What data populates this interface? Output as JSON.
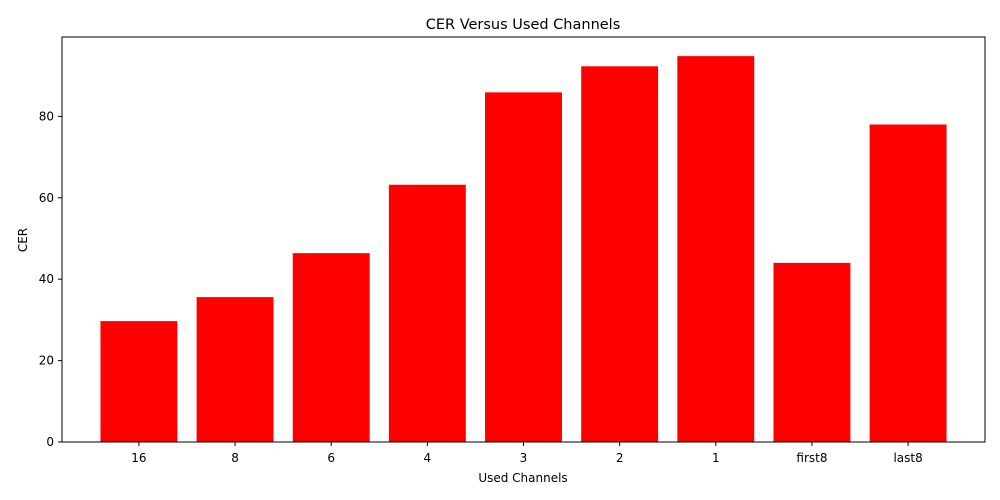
{
  "chart_data": {
    "type": "bar",
    "title": "CER Versus Used Channels",
    "xlabel": "Used Channels",
    "ylabel": "CER",
    "categories": [
      "16",
      "8",
      "6",
      "4",
      "3",
      "2",
      "1",
      "first8",
      "last8"
    ],
    "values": [
      29.7,
      35.6,
      46.4,
      63.2,
      85.9,
      92.3,
      94.8,
      44.0,
      78.0
    ],
    "ylim": [
      0,
      99.5
    ],
    "yticks": [
      0,
      20,
      40,
      60,
      80
    ],
    "bar_color": "#ff0000",
    "grid": false,
    "legend": "none"
  }
}
